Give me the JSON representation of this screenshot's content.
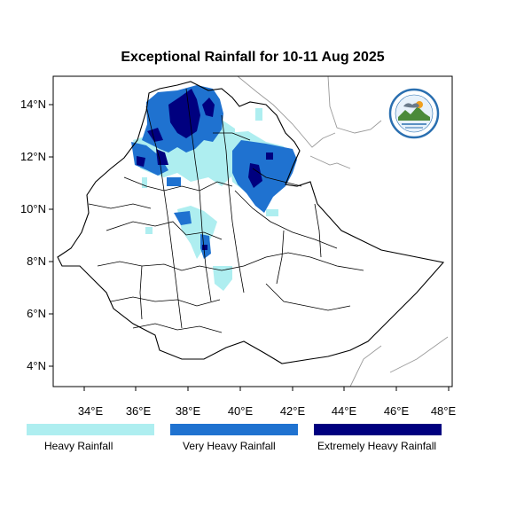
{
  "title": "Exceptional Rainfall for 10-11 Aug 2025",
  "axes": {
    "x_ticks": [
      "34°E",
      "36°E",
      "38°E",
      "40°E",
      "42°E",
      "44°E",
      "46°E",
      "48°E"
    ],
    "y_ticks": [
      "14°N",
      "12°N",
      "10°N",
      "8°N",
      "6°N",
      "4°N"
    ]
  },
  "legend": [
    {
      "label": "Heavy Rainfall",
      "color": "#aeeef0"
    },
    {
      "label": "Very Heavy Rainfall",
      "color": "#1f72d0"
    },
    {
      "label": "Extremely Heavy Rainfall",
      "color": "#00007f"
    }
  ],
  "logo": {
    "icon": "meteorology-institute-logo"
  }
}
